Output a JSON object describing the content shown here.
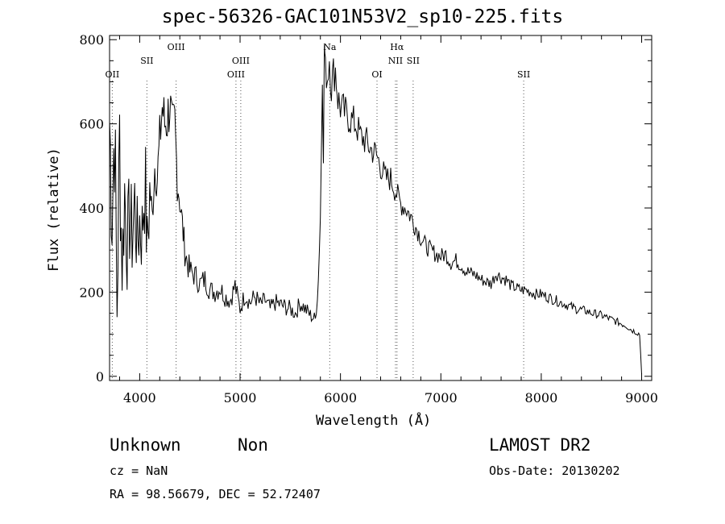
{
  "title": "spec-56326-GAC101N53V2_sp10-225.fits",
  "info": {
    "classification": "Unknown",
    "subclass": "Non",
    "survey": "LAMOST DR2",
    "cz": "cz = NaN",
    "obs_date": "Obs-Date: 20130202",
    "radec": "RA =  98.56679, DEC =  52.72407"
  },
  "chart_data": {
    "type": "line",
    "title": "spec-56326-GAC101N53V2_sp10-225.fits",
    "xlabel": "Wavelength (Å)",
    "ylabel": "Flux (relative)",
    "xlim": [
      3700,
      9100
    ],
    "ylim": [
      -10,
      810
    ],
    "x_ticks": [
      4000,
      5000,
      6000,
      7000,
      8000,
      9000
    ],
    "x_tick_labels": [
      "4000",
      "5000",
      "6000",
      "7000",
      "8000",
      "9000"
    ],
    "y_ticks": [
      0,
      200,
      400,
      600,
      800
    ],
    "y_tick_labels": [
      "0",
      "200",
      "400",
      "600",
      "800"
    ],
    "grid": false,
    "line_color": "#000000",
    "series": [
      {
        "x": [
          3700,
          3725,
          3750,
          3775,
          3800,
          3825,
          3850,
          3875,
          3900,
          3925,
          3950,
          3975,
          4000,
          4025,
          4050,
          4075,
          4100,
          4125,
          4150,
          4175,
          4200,
          4225,
          4250,
          4275,
          4300,
          4325,
          4350,
          4375,
          4400,
          4425,
          4450,
          4475,
          4500,
          4550,
          4600,
          4650,
          4700,
          4750,
          4800,
          4850,
          4900,
          4950,
          5000,
          5050,
          5100,
          5150,
          5200,
          5250,
          5300,
          5350,
          5400,
          5450,
          5500,
          5550,
          5600,
          5650,
          5700,
          5750,
          5780,
          5800,
          5820,
          5830,
          5840,
          5850,
          5870,
          5890,
          5910,
          5930,
          5950,
          5975,
          6000,
          6050,
          6100,
          6150,
          6200,
          6250,
          6300,
          6350,
          6400,
          6450,
          6500,
          6550,
          6600,
          6650,
          6700,
          6750,
          6800,
          6850,
          6900,
          6950,
          7000,
          7050,
          7100,
          7150,
          7200,
          7250,
          7300,
          7350,
          7400,
          7450,
          7500,
          7550,
          7600,
          7650,
          7700,
          7750,
          7800,
          7850,
          7900,
          7950,
          8000,
          8050,
          8100,
          8150,
          8200,
          8250,
          8300,
          8350,
          8400,
          8450,
          8500,
          8550,
          8600,
          8650,
          8700,
          8750,
          8800,
          8850,
          8900,
          8950,
          8980,
          9000
        ],
        "y": [
          610,
          380,
          620,
          150,
          560,
          250,
          440,
          300,
          380,
          330,
          410,
          320,
          370,
          340,
          480,
          300,
          450,
          380,
          500,
          470,
          560,
          640,
          600,
          610,
          650,
          580,
          600,
          470,
          420,
          360,
          300,
          270,
          250,
          240,
          220,
          230,
          205,
          200,
          210,
          190,
          180,
          215,
          160,
          195,
          175,
          190,
          170,
          180,
          160,
          175,
          170,
          165,
          160,
          150,
          175,
          160,
          145,
          135,
          230,
          380,
          700,
          520,
          790,
          740,
          710,
          760,
          690,
          720,
          730,
          660,
          640,
          625,
          610,
          600,
          570,
          560,
          540,
          530,
          500,
          470,
          470,
          440,
          410,
          400,
          380,
          355,
          330,
          310,
          300,
          290,
          285,
          290,
          270,
          275,
          265,
          250,
          245,
          240,
          230,
          225,
          220,
          245,
          235,
          230,
          215,
          210,
          205,
          205,
          200,
          195,
          195,
          190,
          185,
          180,
          175,
          170,
          165,
          160,
          158,
          155,
          150,
          148,
          145,
          140,
          135,
          130,
          125,
          120,
          110,
          105,
          100,
          5
        ]
      }
    ],
    "line_markers": [
      {
        "label": "OII",
        "x": 3727,
        "row": 2
      },
      {
        "label": "SII",
        "x": 4072,
        "row": 1
      },
      {
        "label": "OIII",
        "x": 4363,
        "row": 0
      },
      {
        "label": "OIII",
        "x": 4959,
        "row": 2
      },
      {
        "label": "OIII",
        "x": 5007,
        "row": 1
      },
      {
        "label": "Na",
        "x": 5893,
        "row": 0
      },
      {
        "label": "OI",
        "x": 6364,
        "row": 2
      },
      {
        "label": "Hα",
        "x": 6563,
        "row": 0
      },
      {
        "label": "NII",
        "x": 6548,
        "row": 1
      },
      {
        "label": "SII",
        "x": 6724,
        "row": 1
      },
      {
        "label": "SII",
        "x": 7825,
        "row": 2
      }
    ]
  }
}
